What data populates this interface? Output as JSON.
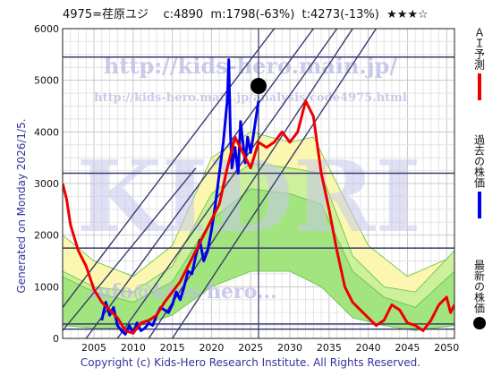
{
  "header": {
    "code_name": "4975=荏原ユジ",
    "current": "c:4890",
    "min": "m:1798(-63%)",
    "target": "t:4273(-13%)",
    "stars": "★★★☆"
  },
  "side_label": "Generated on Monday 2026/1/5.",
  "footer": "Copyright (c) Kids-Hero Research Institute. All Rights Reserved.",
  "watermarks": {
    "url_top": "http://kids-hero.main.jp/",
    "url_mid": "http://kids-hero.main.jp/analysis/code4975.html",
    "big": "KIDRI",
    "url_bottom": "info@kids-hero..."
  },
  "legend": [
    {
      "label": "ＡＩ予測",
      "color": "#ee0000",
      "kind": "line"
    },
    {
      "label": "過去の株価",
      "color": "#0000ee",
      "kind": "line"
    },
    {
      "label": "最新の株価",
      "color": "#000000",
      "kind": "dot"
    }
  ],
  "chart_data": {
    "type": "line",
    "xlim": [
      2001,
      2051
    ],
    "ylim": [
      0,
      6000
    ],
    "xticks": [
      2005,
      2010,
      2015,
      2020,
      2025,
      2030,
      2035,
      2040,
      2045,
      2050
    ],
    "yticks": [
      0,
      1000,
      2000,
      3000,
      4000,
      5000,
      6000
    ],
    "grid": true,
    "series": [
      {
        "name": "過去の株価",
        "color": "#0000ee",
        "points": [
          [
            2006.0,
            350
          ],
          [
            2006.5,
            700
          ],
          [
            2007.0,
            450
          ],
          [
            2007.5,
            600
          ],
          [
            2008.0,
            250
          ],
          [
            2008.5,
            150
          ],
          [
            2009.0,
            80
          ],
          [
            2009.5,
            250
          ],
          [
            2010.0,
            100
          ],
          [
            2010.5,
            300
          ],
          [
            2011.0,
            150
          ],
          [
            2011.5,
            200
          ],
          [
            2012.0,
            300
          ],
          [
            2012.5,
            250
          ],
          [
            2013.0,
            450
          ],
          [
            2013.5,
            600
          ],
          [
            2014.0,
            550
          ],
          [
            2014.5,
            500
          ],
          [
            2015.0,
            650
          ],
          [
            2015.5,
            900
          ],
          [
            2016.0,
            750
          ],
          [
            2016.5,
            1000
          ],
          [
            2017.0,
            1300
          ],
          [
            2017.5,
            1250
          ],
          [
            2018.0,
            1600
          ],
          [
            2018.5,
            1900
          ],
          [
            2019.0,
            1500
          ],
          [
            2019.5,
            1700
          ],
          [
            2020.0,
            2100
          ],
          [
            2020.5,
            2600
          ],
          [
            2021.0,
            3200
          ],
          [
            2021.5,
            3800
          ],
          [
            2022.0,
            4600
          ],
          [
            2022.2,
            5400
          ],
          [
            2022.4,
            4000
          ],
          [
            2022.6,
            3300
          ],
          [
            2023.0,
            3700
          ],
          [
            2023.4,
            3200
          ],
          [
            2023.7,
            4200
          ],
          [
            2024.0,
            3800
          ],
          [
            2024.3,
            3400
          ],
          [
            2024.6,
            3900
          ],
          [
            2025.0,
            3600
          ],
          [
            2025.3,
            3900
          ],
          [
            2025.6,
            4200
          ],
          [
            2026.0,
            4600
          ]
        ]
      },
      {
        "name": "ＡＩ予測",
        "color": "#ee0000",
        "points": [
          [
            2001.0,
            3000
          ],
          [
            2001.5,
            2700
          ],
          [
            2002.0,
            2200
          ],
          [
            2003.0,
            1700
          ],
          [
            2004.0,
            1400
          ],
          [
            2005.0,
            950
          ],
          [
            2006.0,
            700
          ],
          [
            2007.0,
            550
          ],
          [
            2008.0,
            400
          ],
          [
            2009.0,
            150
          ],
          [
            2010.0,
            100
          ],
          [
            2011.0,
            300
          ],
          [
            2012.0,
            350
          ],
          [
            2013.0,
            450
          ],
          [
            2014.0,
            700
          ],
          [
            2015.0,
            900
          ],
          [
            2016.0,
            1100
          ],
          [
            2017.0,
            1400
          ],
          [
            2018.0,
            1700
          ],
          [
            2019.0,
            2000
          ],
          [
            2020.0,
            2300
          ],
          [
            2021.0,
            2600
          ],
          [
            2022.0,
            3300
          ],
          [
            2023.0,
            3900
          ],
          [
            2024.0,
            3600
          ],
          [
            2025.0,
            3300
          ],
          [
            2026.0,
            3800
          ],
          [
            2027.0,
            3700
          ],
          [
            2028.0,
            3800
          ],
          [
            2029.0,
            4000
          ],
          [
            2030.0,
            3800
          ],
          [
            2031.0,
            4000
          ],
          [
            2032.0,
            4600
          ],
          [
            2033.0,
            4300
          ],
          [
            2034.0,
            3200
          ],
          [
            2035.0,
            2500
          ],
          [
            2036.0,
            1700
          ],
          [
            2037.0,
            1000
          ],
          [
            2038.0,
            700
          ],
          [
            2039.0,
            550
          ],
          [
            2040.0,
            400
          ],
          [
            2041.0,
            250
          ],
          [
            2042.0,
            350
          ],
          [
            2043.0,
            650
          ],
          [
            2044.0,
            550
          ],
          [
            2045.0,
            300
          ],
          [
            2046.0,
            250
          ],
          [
            2047.0,
            150
          ],
          [
            2048.0,
            350
          ],
          [
            2049.0,
            650
          ],
          [
            2050.0,
            800
          ],
          [
            2050.5,
            500
          ],
          [
            2051.0,
            650
          ]
        ]
      },
      {
        "name": "最新の株価",
        "color": "#000000",
        "points": [
          [
            2026.0,
            4890
          ]
        ]
      }
    ],
    "bands": [
      {
        "color": "#fbf7b0",
        "lower": [
          [
            2001,
            1100
          ],
          [
            2005,
            700
          ],
          [
            2010,
            600
          ],
          [
            2015,
            900
          ],
          [
            2020,
            1800
          ],
          [
            2025,
            2200
          ],
          [
            2030,
            2600
          ],
          [
            2033,
            2800
          ],
          [
            2036,
            1800
          ],
          [
            2040,
            800
          ],
          [
            2045,
            500
          ],
          [
            2051,
            700
          ]
        ],
        "upper": [
          [
            2001,
            2000
          ],
          [
            2005,
            1500
          ],
          [
            2010,
            1200
          ],
          [
            2015,
            1800
          ],
          [
            2020,
            3500
          ],
          [
            2025,
            4000
          ],
          [
            2030,
            3800
          ],
          [
            2033,
            3900
          ],
          [
            2036,
            3000
          ],
          [
            2040,
            1800
          ],
          [
            2045,
            1200
          ],
          [
            2051,
            1600
          ]
        ]
      },
      {
        "color": "#ccf09c",
        "lower": [
          [
            2001,
            300
          ],
          [
            2005,
            250
          ],
          [
            2010,
            250
          ],
          [
            2015,
            500
          ],
          [
            2020,
            1200
          ],
          [
            2025,
            1500
          ],
          [
            2030,
            1700
          ],
          [
            2034,
            1300
          ],
          [
            2038,
            500
          ],
          [
            2042,
            300
          ],
          [
            2046,
            200
          ],
          [
            2051,
            300
          ]
        ],
        "upper": [
          [
            2001,
            1300
          ],
          [
            2005,
            1000
          ],
          [
            2010,
            900
          ],
          [
            2015,
            1400
          ],
          [
            2020,
            2800
          ],
          [
            2025,
            3400
          ],
          [
            2030,
            3300
          ],
          [
            2034,
            3200
          ],
          [
            2038,
            1600
          ],
          [
            2042,
            1000
          ],
          [
            2046,
            900
          ],
          [
            2051,
            1700
          ]
        ]
      },
      {
        "color": "#a2e57e",
        "lower": [
          [
            2001,
            250
          ],
          [
            2005,
            200
          ],
          [
            2010,
            200
          ],
          [
            2015,
            450
          ],
          [
            2020,
            1000
          ],
          [
            2025,
            1300
          ],
          [
            2030,
            1300
          ],
          [
            2034,
            1000
          ],
          [
            2038,
            400
          ],
          [
            2042,
            250
          ],
          [
            2046,
            150
          ],
          [
            2051,
            250
          ]
        ],
        "upper": [
          [
            2001,
            1200
          ],
          [
            2005,
            900
          ],
          [
            2010,
            700
          ],
          [
            2015,
            1100
          ],
          [
            2020,
            2300
          ],
          [
            2025,
            2900
          ],
          [
            2030,
            2800
          ],
          [
            2034,
            2600
          ],
          [
            2038,
            1300
          ],
          [
            2042,
            800
          ],
          [
            2046,
            600
          ],
          [
            2051,
            1300
          ]
        ]
      }
    ],
    "horizontal_lines": [
      5450,
      3200,
      1750,
      280,
      180
    ],
    "trend_lines": [
      [
        [
          2001,
          600
        ],
        [
          2028,
          6000
        ]
      ],
      [
        [
          2004,
          0
        ],
        [
          2033,
          6000
        ]
      ],
      [
        [
          2008,
          0
        ],
        [
          2036,
          6000
        ]
      ],
      [
        [
          2012,
          0
        ],
        [
          2038,
          6000
        ]
      ],
      [
        [
          2015,
          0
        ],
        [
          2041,
          6000
        ]
      ],
      [
        [
          2001,
          150
        ],
        [
          2018,
          3300
        ]
      ]
    ],
    "vertical_line": 2026
  }
}
